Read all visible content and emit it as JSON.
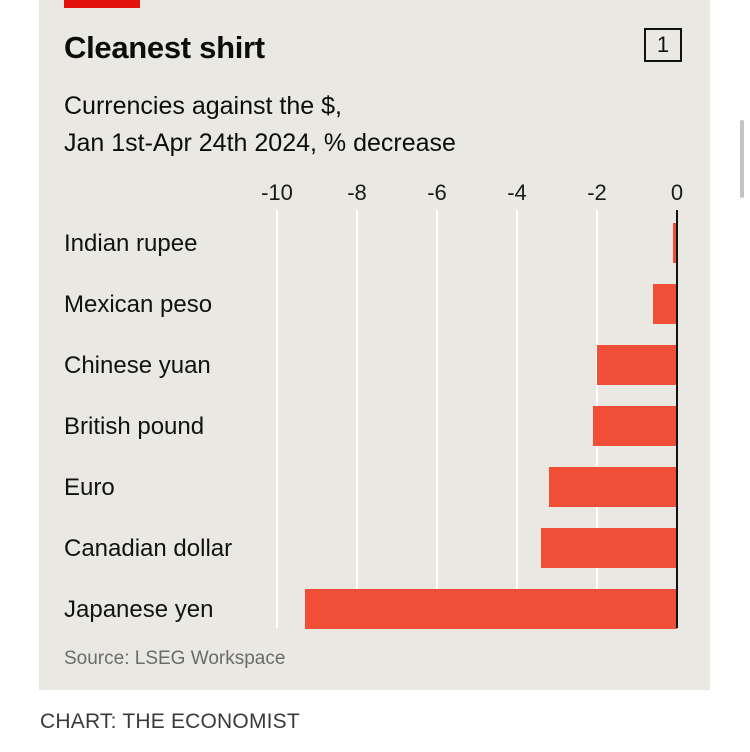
{
  "title": "Cleanest shirt",
  "badge": "1",
  "subtitle_line1": "Currencies against the $,",
  "subtitle_line2": "Jan 1st-Apr 24th 2024, % decrease",
  "source": "Source: LSEG Workspace",
  "credit": "CHART: THE ECONOMIST",
  "colors": {
    "bar": "#f04e37",
    "accent": "#e3120b",
    "panel": "#e9e8e3",
    "grid": "#ffffff"
  },
  "chart_data": {
    "type": "bar",
    "orientation": "horizontal",
    "title": "Cleanest shirt",
    "subtitle": "Currencies against the $, Jan 1st-Apr 24th 2024, % decrease",
    "categories": [
      "Indian rupee",
      "Mexican peso",
      "Chinese yuan",
      "British pound",
      "Euro",
      "Canadian dollar",
      "Japanese yen"
    ],
    "values": [
      -0.1,
      -0.6,
      -2.0,
      -2.1,
      -3.2,
      -3.4,
      -9.3
    ],
    "xlim": [
      -10,
      0
    ],
    "xticks": [
      "-10",
      "-8",
      "-6",
      "-4",
      "-2",
      "0"
    ],
    "xtick_values": [
      -10,
      -8,
      -6,
      -4,
      -2,
      0
    ],
    "xlabel": "",
    "ylabel": "",
    "grid": true,
    "source": "Source: LSEG Workspace"
  }
}
